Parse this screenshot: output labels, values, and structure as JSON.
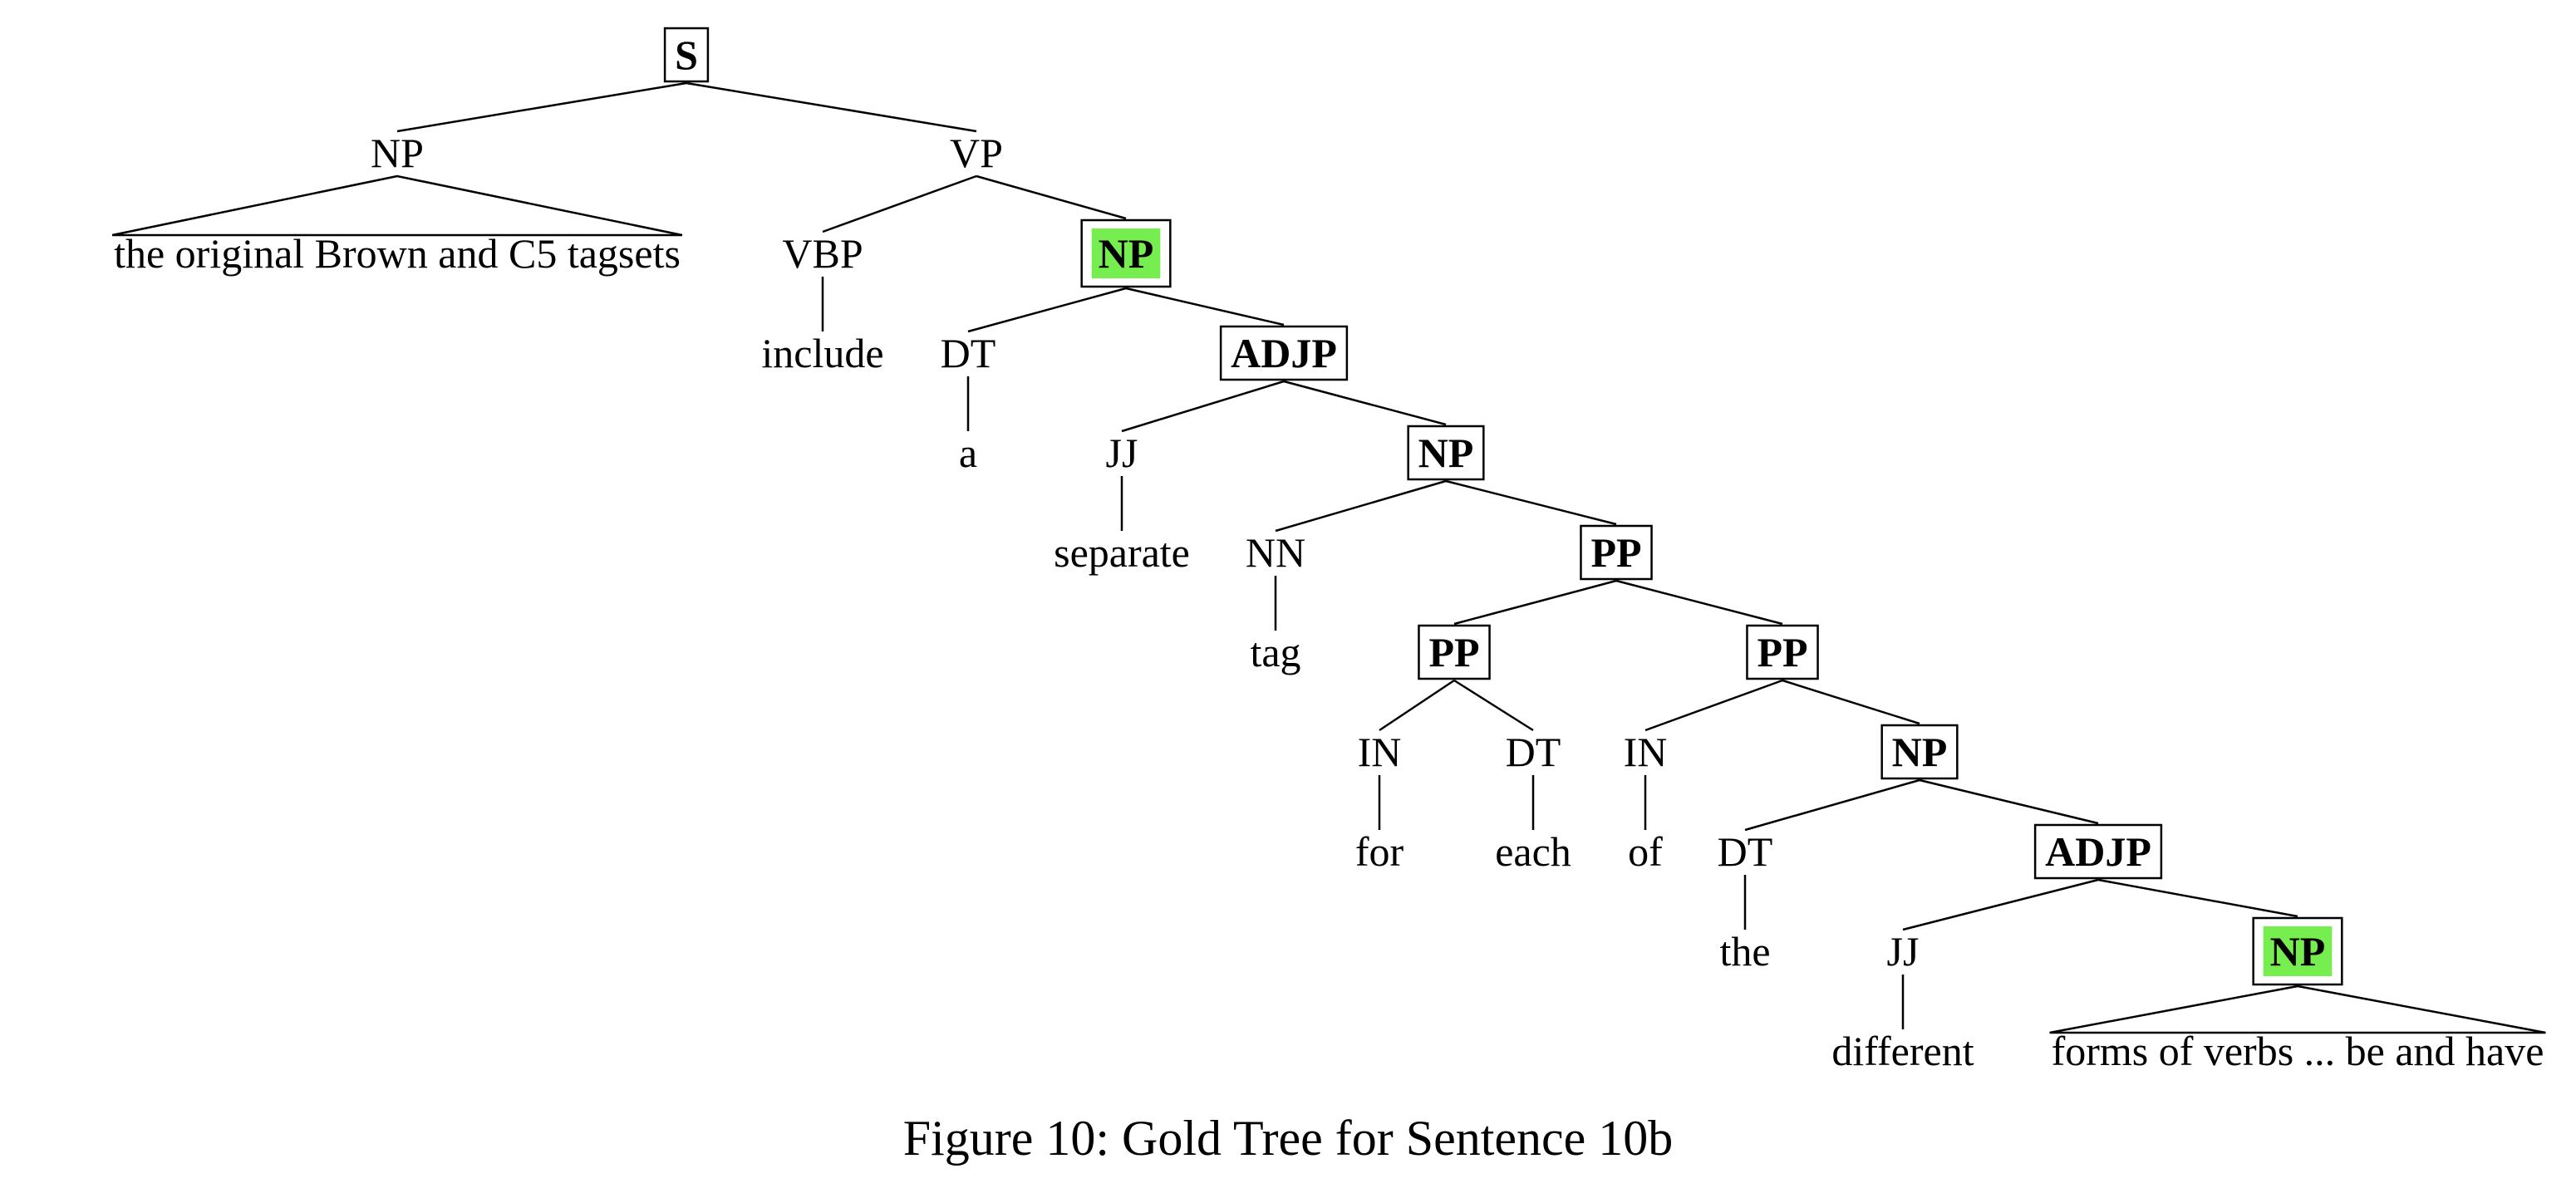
{
  "caption": "Figure 10: Gold Tree for Sentence 10b",
  "tree": {
    "nodes": [
      {
        "id": "s",
        "label": "S",
        "boxed": true
      },
      {
        "id": "np1",
        "label": "NP"
      },
      {
        "id": "vp",
        "label": "VP"
      },
      {
        "id": "leaf1",
        "label": "the original Brown and C5 tagsets",
        "leaf": true
      },
      {
        "id": "vbp",
        "label": "VBP"
      },
      {
        "id": "include",
        "label": "include",
        "leaf": true
      },
      {
        "id": "np2",
        "label": "NP",
        "boxed": true,
        "highlight": "#76ee4f"
      },
      {
        "id": "dt1",
        "label": "DT"
      },
      {
        "id": "a",
        "label": "a",
        "leaf": true
      },
      {
        "id": "adjp1",
        "label": "ADJP",
        "boxed": true
      },
      {
        "id": "jj1",
        "label": "JJ"
      },
      {
        "id": "separate",
        "label": "separate",
        "leaf": true
      },
      {
        "id": "np3",
        "label": "NP",
        "boxed": true
      },
      {
        "id": "nn",
        "label": "NN"
      },
      {
        "id": "tag",
        "label": "tag",
        "leaf": true
      },
      {
        "id": "pp1",
        "label": "PP",
        "boxed": true
      },
      {
        "id": "pp2",
        "label": "PP",
        "boxed": true
      },
      {
        "id": "in1",
        "label": "IN"
      },
      {
        "id": "for",
        "label": "for",
        "leaf": true
      },
      {
        "id": "dt2",
        "label": "DT"
      },
      {
        "id": "each",
        "label": "each",
        "leaf": true
      },
      {
        "id": "pp3",
        "label": "PP",
        "boxed": true
      },
      {
        "id": "in2",
        "label": "IN"
      },
      {
        "id": "of",
        "label": "of",
        "leaf": true
      },
      {
        "id": "np4",
        "label": "NP",
        "boxed": true
      },
      {
        "id": "dt3",
        "label": "DT"
      },
      {
        "id": "the",
        "label": "the",
        "leaf": true
      },
      {
        "id": "adjp2",
        "label": "ADJP",
        "boxed": true
      },
      {
        "id": "jj2",
        "label": "JJ"
      },
      {
        "id": "different",
        "label": "different",
        "leaf": true
      },
      {
        "id": "np5",
        "label": "NP",
        "boxed": true,
        "highlight": "#76ee4f"
      },
      {
        "id": "leaf2",
        "label": "forms of verbs ... be and have",
        "leaf": true
      }
    ],
    "edges": [
      [
        "s",
        "np1"
      ],
      [
        "s",
        "vp"
      ],
      [
        "np1",
        "leaf1",
        "triangle"
      ],
      [
        "vp",
        "vbp"
      ],
      [
        "vp",
        "np2"
      ],
      [
        "vbp",
        "include"
      ],
      [
        "np2",
        "dt1"
      ],
      [
        "np2",
        "adjp1"
      ],
      [
        "dt1",
        "a"
      ],
      [
        "adjp1",
        "jj1"
      ],
      [
        "adjp1",
        "np3"
      ],
      [
        "jj1",
        "separate"
      ],
      [
        "np3",
        "nn"
      ],
      [
        "np3",
        "pp1"
      ],
      [
        "nn",
        "tag"
      ],
      [
        "pp1",
        "pp2"
      ],
      [
        "pp1",
        "pp3"
      ],
      [
        "pp2",
        "in1"
      ],
      [
        "pp2",
        "dt2"
      ],
      [
        "in1",
        "for"
      ],
      [
        "dt2",
        "each"
      ],
      [
        "pp3",
        "in2"
      ],
      [
        "pp3",
        "np4"
      ],
      [
        "in2",
        "of"
      ],
      [
        "np4",
        "dt3"
      ],
      [
        "np4",
        "adjp2"
      ],
      [
        "dt3",
        "the"
      ],
      [
        "adjp2",
        "jj2"
      ],
      [
        "adjp2",
        "np5"
      ],
      [
        "jj2",
        "different"
      ],
      [
        "np5",
        "leaf2",
        "triangle"
      ]
    ]
  }
}
